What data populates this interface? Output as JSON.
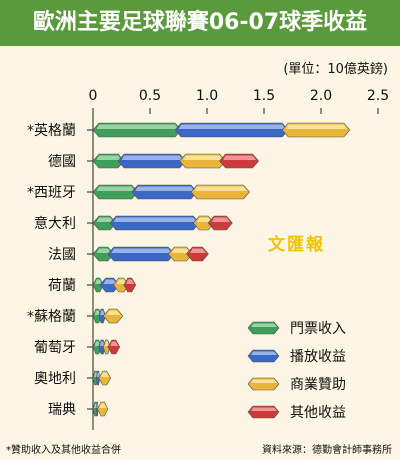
{
  "title": "歐洲主要足球聯賽06-07球季收益",
  "unit_label": "(單位：10億英鎊)",
  "watermark": "文匯報",
  "footnote": "*贊助收入及其他收益合併",
  "source": "資料來源：德勤會計師事務所",
  "colors": {
    "title_bg": "#5a9a3c",
    "panel_bg": "#fdf6e4",
    "series": [
      "#3f9e5a",
      "#3a68c4",
      "#e8b53a",
      "#cc3a3a"
    ],
    "series_light": [
      "#a7dcb3",
      "#a9c1f0",
      "#fbe7a6",
      "#f2a7a7"
    ]
  },
  "chart_data": {
    "type": "bar",
    "orientation": "horizontal",
    "stacked": true,
    "xlim": [
      0,
      2.5
    ],
    "xticks": [
      "0",
      "0.5",
      "1.0",
      "1.5",
      "2.0",
      "2.5"
    ],
    "xtick_values": [
      0,
      0.5,
      1.0,
      1.5,
      2.0,
      2.5
    ],
    "categories": [
      "*英格蘭",
      "德國",
      "*西班牙",
      "意大利",
      "法國",
      "荷蘭",
      "*蘇格蘭",
      "葡萄牙",
      "奧地利",
      "瑞典"
    ],
    "series": [
      {
        "name": "門票收入",
        "values": [
          0.72,
          0.22,
          0.34,
          0.15,
          0.13,
          0.06,
          0.05,
          0.05,
          0.03,
          0.03
        ]
      },
      {
        "name": "播放收益",
        "values": [
          0.94,
          0.54,
          0.52,
          0.73,
          0.53,
          0.12,
          0.04,
          0.04,
          0.02,
          0.01
        ]
      },
      {
        "name": "商業贊助",
        "values": [
          0.54,
          0.35,
          0.46,
          0.13,
          0.16,
          0.09,
          0.12,
          0.04,
          0.07,
          0.06
        ]
      },
      {
        "name": "其他收益",
        "values": [
          0,
          0.29,
          0,
          0.16,
          0.14,
          0.07,
          0,
          0.07,
          0,
          0
        ]
      }
    ],
    "legend_position": "right-bottom"
  }
}
